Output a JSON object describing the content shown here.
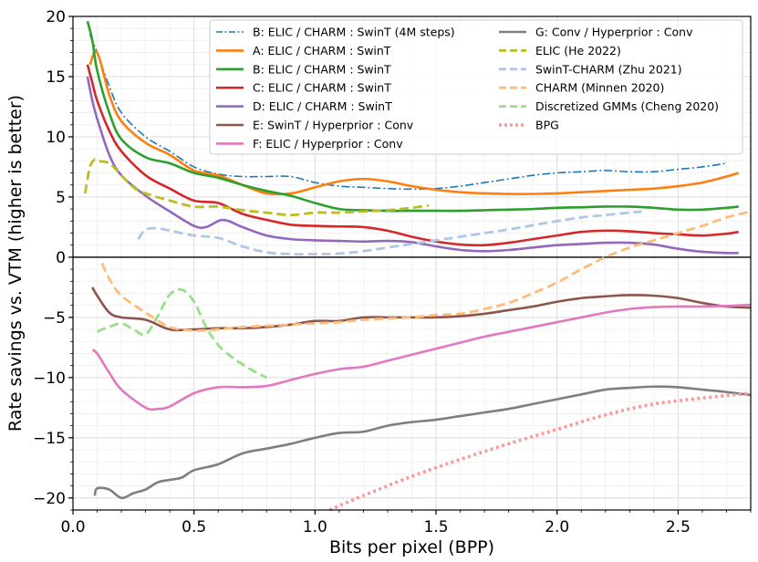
{
  "chart_data": {
    "type": "line",
    "title": "",
    "xlabel": "Bits per pixel (BPP)",
    "ylabel": "Rate savings vs. VTM (higher is better)",
    "xlim": [
      0.0,
      2.8
    ],
    "ylim": [
      -21,
      20
    ],
    "xticks": [
      0.0,
      0.5,
      1.0,
      1.5,
      2.0,
      2.5
    ],
    "xtick_labels": [
      "0.0",
      "0.5",
      "1.0",
      "1.5",
      "2.0",
      "2.5"
    ],
    "yticks": [
      -20,
      -15,
      -10,
      -5,
      0,
      5,
      10,
      15,
      20
    ],
    "ytick_labels": [
      "−20",
      "−15",
      "−10",
      "−5",
      "0",
      "5",
      "10",
      "15",
      "20"
    ],
    "grid": true,
    "zero_line": true,
    "legend_position": "top-right",
    "series": [
      {
        "name": "B: ELIC / CHARM : SwinT (4M steps)",
        "color": "#1f77b4",
        "style": "dashdot",
        "width": 1.6,
        "x": [
          0.07,
          0.1,
          0.15,
          0.2,
          0.3,
          0.4,
          0.5,
          0.6,
          0.7,
          0.8,
          0.9,
          1.0,
          1.1,
          1.2,
          1.3,
          1.4,
          1.5,
          1.6,
          1.7,
          1.8,
          1.9,
          2.0,
          2.1,
          2.2,
          2.3,
          2.4,
          2.5,
          2.6,
          2.7
        ],
        "y": [
          18.5,
          17.0,
          14.2,
          12.0,
          10.0,
          8.8,
          7.5,
          6.9,
          6.7,
          6.7,
          6.7,
          6.2,
          5.9,
          5.8,
          5.7,
          5.65,
          5.7,
          5.9,
          6.2,
          6.5,
          6.8,
          7.0,
          7.1,
          7.2,
          7.1,
          7.1,
          7.3,
          7.5,
          7.8
        ]
      },
      {
        "name": "A: ELIC / CHARM : SwinT",
        "color": "#ff7f0e",
        "style": "solid",
        "width": 2.6,
        "x": [
          0.07,
          0.1,
          0.15,
          0.2,
          0.3,
          0.4,
          0.5,
          0.6,
          0.7,
          0.8,
          0.9,
          1.0,
          1.1,
          1.2,
          1.3,
          1.4,
          1.5,
          1.6,
          1.7,
          1.8,
          1.9,
          2.0,
          2.1,
          2.2,
          2.3,
          2.4,
          2.5,
          2.6,
          2.7,
          2.75
        ],
        "y": [
          16.0,
          17.0,
          13.5,
          11.3,
          9.5,
          8.5,
          7.2,
          6.8,
          6.0,
          5.3,
          5.3,
          5.8,
          6.3,
          6.5,
          6.3,
          5.9,
          5.6,
          5.4,
          5.3,
          5.25,
          5.25,
          5.3,
          5.4,
          5.5,
          5.6,
          5.7,
          5.9,
          6.2,
          6.7,
          7.0
        ]
      },
      {
        "name": "B: ELIC / CHARM : SwinT",
        "color": "#2ca02c",
        "style": "solid",
        "width": 2.6,
        "x": [
          0.06,
          0.08,
          0.1,
          0.15,
          0.2,
          0.3,
          0.4,
          0.5,
          0.6,
          0.7,
          0.8,
          0.9,
          1.0,
          1.1,
          1.2,
          1.3,
          1.4,
          1.5,
          1.6,
          1.7,
          1.8,
          1.9,
          2.0,
          2.1,
          2.2,
          2.3,
          2.4,
          2.5,
          2.6,
          2.7,
          2.75
        ],
        "y": [
          19.6,
          18.0,
          15.5,
          12.0,
          9.8,
          8.3,
          7.8,
          7.0,
          6.6,
          6.0,
          5.5,
          5.1,
          4.5,
          4.0,
          3.9,
          3.85,
          3.85,
          3.85,
          3.85,
          3.9,
          3.95,
          4.0,
          4.1,
          4.15,
          4.2,
          4.2,
          4.1,
          3.95,
          3.95,
          4.1,
          4.2
        ]
      },
      {
        "name": "C: ELIC / CHARM : SwinT",
        "color": "#d62728",
        "style": "solid",
        "width": 2.6,
        "x": [
          0.06,
          0.08,
          0.1,
          0.15,
          0.2,
          0.3,
          0.4,
          0.5,
          0.6,
          0.7,
          0.8,
          0.9,
          1.0,
          1.1,
          1.2,
          1.3,
          1.4,
          1.5,
          1.6,
          1.7,
          1.8,
          1.9,
          2.0,
          2.1,
          2.2,
          2.3,
          2.4,
          2.5,
          2.6,
          2.7,
          2.75
        ],
        "y": [
          16.0,
          14.5,
          13.0,
          10.5,
          8.8,
          6.8,
          5.7,
          4.7,
          4.5,
          3.6,
          3.1,
          2.7,
          2.6,
          2.55,
          2.5,
          2.2,
          1.7,
          1.3,
          1.05,
          1.0,
          1.2,
          1.5,
          1.8,
          2.1,
          2.2,
          2.15,
          2.0,
          1.9,
          1.8,
          1.95,
          2.1
        ]
      },
      {
        "name": "D: ELIC / CHARM : SwinT",
        "color": "#9467bd",
        "style": "solid",
        "width": 2.6,
        "x": [
          0.06,
          0.08,
          0.1,
          0.15,
          0.2,
          0.3,
          0.4,
          0.5,
          0.55,
          0.62,
          0.7,
          0.8,
          0.9,
          1.0,
          1.1,
          1.2,
          1.3,
          1.4,
          1.5,
          1.6,
          1.7,
          1.8,
          1.9,
          2.0,
          2.1,
          2.2,
          2.3,
          2.4,
          2.5,
          2.6,
          2.7,
          2.75
        ],
        "y": [
          15.0,
          13.0,
          11.5,
          8.5,
          6.8,
          5.1,
          3.8,
          2.6,
          2.5,
          3.1,
          2.5,
          1.8,
          1.5,
          1.4,
          1.35,
          1.3,
          1.35,
          1.25,
          0.9,
          0.6,
          0.5,
          0.6,
          0.8,
          1.0,
          1.1,
          1.2,
          1.2,
          1.05,
          0.7,
          0.45,
          0.35,
          0.35
        ]
      },
      {
        "name": "E: SwinT / Hyperprior : Conv",
        "color": "#8c564b",
        "style": "solid",
        "width": 2.6,
        "x": [
          0.08,
          0.1,
          0.15,
          0.2,
          0.3,
          0.4,
          0.5,
          0.6,
          0.7,
          0.8,
          0.9,
          1.0,
          1.1,
          1.2,
          1.3,
          1.4,
          1.5,
          1.6,
          1.7,
          1.8,
          1.9,
          2.0,
          2.1,
          2.2,
          2.3,
          2.4,
          2.5,
          2.6,
          2.7,
          2.8
        ],
        "y": [
          -2.5,
          -3.2,
          -4.6,
          -5.0,
          -5.2,
          -6.0,
          -6.0,
          -5.9,
          -5.9,
          -5.8,
          -5.6,
          -5.3,
          -5.3,
          -5.0,
          -5.0,
          -5.0,
          -5.0,
          -4.9,
          -4.7,
          -4.4,
          -4.1,
          -3.7,
          -3.4,
          -3.25,
          -3.15,
          -3.2,
          -3.4,
          -3.8,
          -4.1,
          -4.2
        ]
      },
      {
        "name": "F: ELIC / Hyperprior : Conv",
        "color": "#e377c2",
        "style": "solid",
        "width": 2.6,
        "x": [
          0.08,
          0.1,
          0.15,
          0.2,
          0.3,
          0.35,
          0.4,
          0.5,
          0.6,
          0.7,
          0.8,
          0.9,
          1.0,
          1.1,
          1.2,
          1.3,
          1.4,
          1.5,
          1.6,
          1.7,
          1.8,
          1.9,
          2.0,
          2.1,
          2.2,
          2.3,
          2.4,
          2.5,
          2.6,
          2.7,
          2.8
        ],
        "y": [
          -7.7,
          -8.0,
          -9.6,
          -11.0,
          -12.5,
          -12.6,
          -12.4,
          -11.3,
          -10.8,
          -10.8,
          -10.7,
          -10.2,
          -9.7,
          -9.3,
          -9.1,
          -8.6,
          -8.1,
          -7.6,
          -7.1,
          -6.6,
          -6.2,
          -5.8,
          -5.4,
          -5.0,
          -4.6,
          -4.3,
          -4.15,
          -4.1,
          -4.1,
          -4.05,
          -3.95
        ]
      },
      {
        "name": "G: Conv / Hyperprior : Conv",
        "color": "#7f7f7f",
        "style": "solid",
        "width": 2.6,
        "x": [
          0.09,
          0.1,
          0.15,
          0.2,
          0.25,
          0.3,
          0.35,
          0.4,
          0.45,
          0.5,
          0.6,
          0.7,
          0.8,
          0.9,
          1.0,
          1.1,
          1.2,
          1.3,
          1.4,
          1.5,
          1.6,
          1.7,
          1.8,
          1.9,
          2.0,
          2.1,
          2.2,
          2.3,
          2.4,
          2.5,
          2.6,
          2.7,
          2.8
        ],
        "y": [
          -19.8,
          -19.2,
          -19.3,
          -20.0,
          -19.6,
          -19.3,
          -18.7,
          -18.5,
          -18.3,
          -17.7,
          -17.2,
          -16.3,
          -15.9,
          -15.5,
          -15.0,
          -14.6,
          -14.5,
          -14.0,
          -13.7,
          -13.5,
          -13.2,
          -12.9,
          -12.6,
          -12.2,
          -11.8,
          -11.4,
          -11.0,
          -10.85,
          -10.75,
          -10.8,
          -11.0,
          -11.2,
          -11.45
        ]
      },
      {
        "name": "ELIC (He 2022)",
        "color": "#bcbd22",
        "style": "dashed",
        "width": 2.8,
        "x": [
          0.05,
          0.07,
          0.09,
          0.1,
          0.15,
          0.2,
          0.25,
          0.3,
          0.4,
          0.5,
          0.6,
          0.7,
          0.8,
          0.9,
          1.0,
          1.1,
          1.2,
          1.3,
          1.4,
          1.47
        ],
        "y": [
          5.3,
          7.5,
          8.1,
          8.0,
          7.8,
          6.8,
          5.8,
          5.3,
          4.7,
          4.2,
          4.2,
          3.9,
          3.7,
          3.5,
          3.7,
          3.7,
          3.8,
          3.9,
          4.1,
          4.3
        ]
      },
      {
        "name": "SwinT-CHARM (Zhu 2021)",
        "color": "#aec7e8",
        "style": "dashed",
        "width": 2.8,
        "x": [
          0.27,
          0.3,
          0.35,
          0.4,
          0.5,
          0.6,
          0.7,
          0.8,
          0.9,
          1.0,
          1.1,
          1.2,
          1.3,
          1.4,
          1.5,
          1.6,
          1.7,
          1.8,
          1.9,
          2.0,
          2.1,
          2.2,
          2.3,
          2.35
        ],
        "y": [
          1.5,
          2.3,
          2.4,
          2.2,
          1.8,
          1.6,
          0.9,
          0.4,
          0.25,
          0.25,
          0.3,
          0.5,
          0.8,
          1.1,
          1.4,
          1.7,
          2.0,
          2.3,
          2.65,
          3.0,
          3.3,
          3.5,
          3.7,
          3.8
        ]
      },
      {
        "name": "CHARM (Minnen 2020)",
        "color": "#ffbb78",
        "style": "dashed",
        "width": 2.8,
        "x": [
          0.12,
          0.15,
          0.2,
          0.3,
          0.4,
          0.5,
          0.6,
          0.7,
          0.8,
          0.9,
          1.0,
          1.1,
          1.2,
          1.3,
          1.4,
          1.5,
          1.6,
          1.7,
          1.8,
          1.9,
          2.0,
          2.1,
          2.2,
          2.3,
          2.4,
          2.5,
          2.6,
          2.7,
          2.8
        ],
        "y": [
          -0.5,
          -1.8,
          -3.2,
          -4.6,
          -5.8,
          -6.1,
          -6.0,
          -5.8,
          -5.7,
          -5.6,
          -5.5,
          -5.4,
          -5.2,
          -5.1,
          -5.0,
          -4.8,
          -4.7,
          -4.3,
          -3.8,
          -3.0,
          -2.1,
          -1.0,
          0.0,
          0.8,
          1.4,
          2.0,
          2.6,
          3.3,
          3.8
        ]
      },
      {
        "name": "Discretized GMMs (Cheng 2020)",
        "color": "#98df8a",
        "style": "dashed",
        "width": 2.8,
        "x": [
          0.1,
          0.12,
          0.15,
          0.2,
          0.25,
          0.3,
          0.35,
          0.4,
          0.45,
          0.5,
          0.55,
          0.6,
          0.65,
          0.7,
          0.75,
          0.8
        ],
        "y": [
          -6.2,
          -6.0,
          -5.8,
          -5.5,
          -6.0,
          -6.4,
          -4.9,
          -3.1,
          -2.7,
          -3.7,
          -5.8,
          -7.3,
          -8.2,
          -8.9,
          -9.5,
          -10.0
        ]
      },
      {
        "name": "BPG",
        "color": "#ff9896",
        "style": "dotted",
        "width": 3.6,
        "x": [
          1.06,
          1.2,
          1.4,
          1.6,
          1.8,
          2.0,
          2.2,
          2.4,
          2.6,
          2.8
        ],
        "y": [
          -21.0,
          -19.8,
          -18.2,
          -16.8,
          -15.5,
          -14.3,
          -13.1,
          -12.2,
          -11.7,
          -11.3
        ]
      }
    ]
  }
}
